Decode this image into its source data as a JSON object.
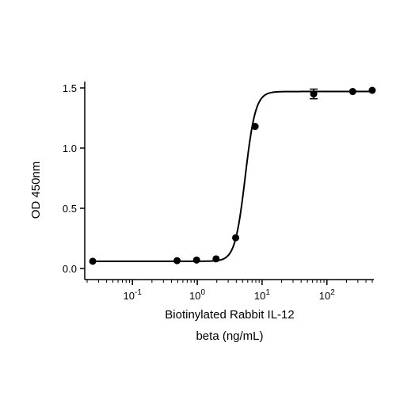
{
  "chart_data": {
    "type": "scatter",
    "xscale": "log",
    "xlim": [
      0.02,
      500
    ],
    "ylim": [
      0,
      1.5
    ],
    "ylabel": "OD 450nm",
    "xlabel_lines": [
      "Biotinylated Rabbit IL-12",
      "beta (ng/mL)"
    ],
    "x_ticks": [
      {
        "value": 0.1,
        "base": "10",
        "exp": "-1"
      },
      {
        "value": 1,
        "base": "10",
        "exp": "0"
      },
      {
        "value": 10,
        "base": "10",
        "exp": "1"
      },
      {
        "value": 100,
        "base": "10",
        "exp": "2"
      }
    ],
    "y_ticks": [
      {
        "value": 0,
        "label": "0.0"
      },
      {
        "value": 0.5,
        "label": "0.5"
      },
      {
        "value": 1.0,
        "label": "1.0"
      },
      {
        "value": 1.5,
        "label": "1.5"
      }
    ],
    "points": [
      {
        "x": 0.0244,
        "y": 0.06
      },
      {
        "x": 0.488,
        "y": 0.065
      },
      {
        "x": 0.977,
        "y": 0.07
      },
      {
        "x": 1.95,
        "y": 0.08
      },
      {
        "x": 3.91,
        "y": 0.255
      },
      {
        "x": 7.81,
        "y": 1.18
      },
      {
        "x": 62.5,
        "y": 1.45,
        "err": 0.04
      },
      {
        "x": 250,
        "y": 1.47
      },
      {
        "x": 500,
        "y": 1.48
      }
    ],
    "fit": {
      "bottom": 0.06,
      "top": 1.47,
      "ec50": 5.5,
      "hill": 5.5
    },
    "grid": false,
    "color": "#000000"
  }
}
